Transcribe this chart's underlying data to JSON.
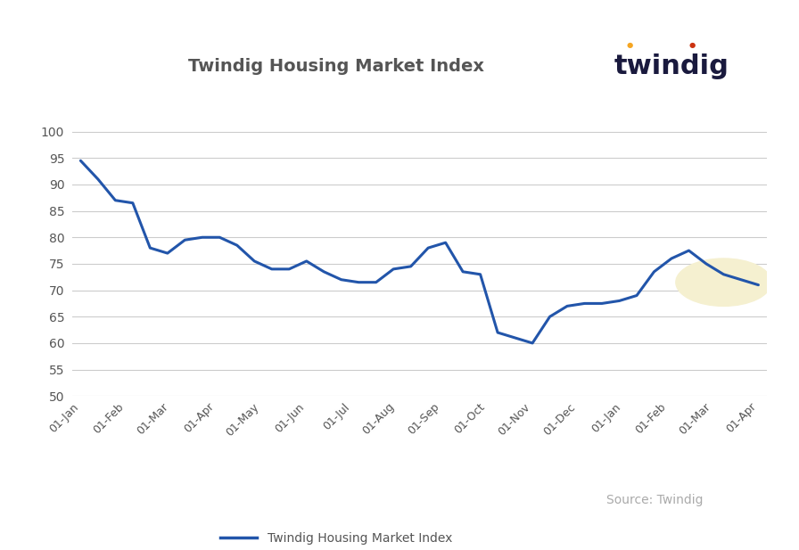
{
  "title": "Twindig Housing Market Index",
  "ylim": [
    50,
    102
  ],
  "yticks": [
    50,
    55,
    60,
    65,
    70,
    75,
    80,
    85,
    90,
    95,
    100
  ],
  "xtick_labels": [
    "01-Jan",
    "01-Feb",
    "01-Mar",
    "01-Apr",
    "01-May",
    "01-Jun",
    "01-Jul",
    "01-Aug",
    "01-Sep",
    "01-Oct",
    "01-Nov",
    "01-Dec",
    "01-Jan",
    "01-Feb",
    "01-Mar",
    "01-Apr"
  ],
  "line_color": "#2255aa",
  "line_width": 2.2,
  "legend_label": "Twindig Housing Market Index",
  "source_text": "Source: Twindig",
  "logo_text": "twindig",
  "logo_color": "#1a1a3e",
  "logo_dot1_color": "#f5a623",
  "logo_dot2_color": "#cc3311",
  "highlight_circle_color": "#f5f0d0",
  "background_color": "#ffffff",
  "grid_color": "#cccccc",
  "title_color": "#555555",
  "source_color": "#aaaaaa",
  "tick_color": "#555555",
  "values": [
    94.5,
    91.0,
    87.0,
    86.5,
    78.0,
    77.0,
    79.5,
    80.0,
    80.0,
    78.5,
    75.5,
    74.0,
    74.0,
    75.5,
    73.5,
    72.0,
    71.5,
    71.5,
    74.0,
    74.5,
    78.0,
    79.0,
    73.5,
    73.0,
    62.0,
    61.0,
    60.0,
    65.0,
    67.0,
    67.5,
    67.5,
    68.0,
    69.0,
    73.5,
    76.0,
    77.5,
    75.0,
    73.0,
    72.0,
    71.0
  ]
}
